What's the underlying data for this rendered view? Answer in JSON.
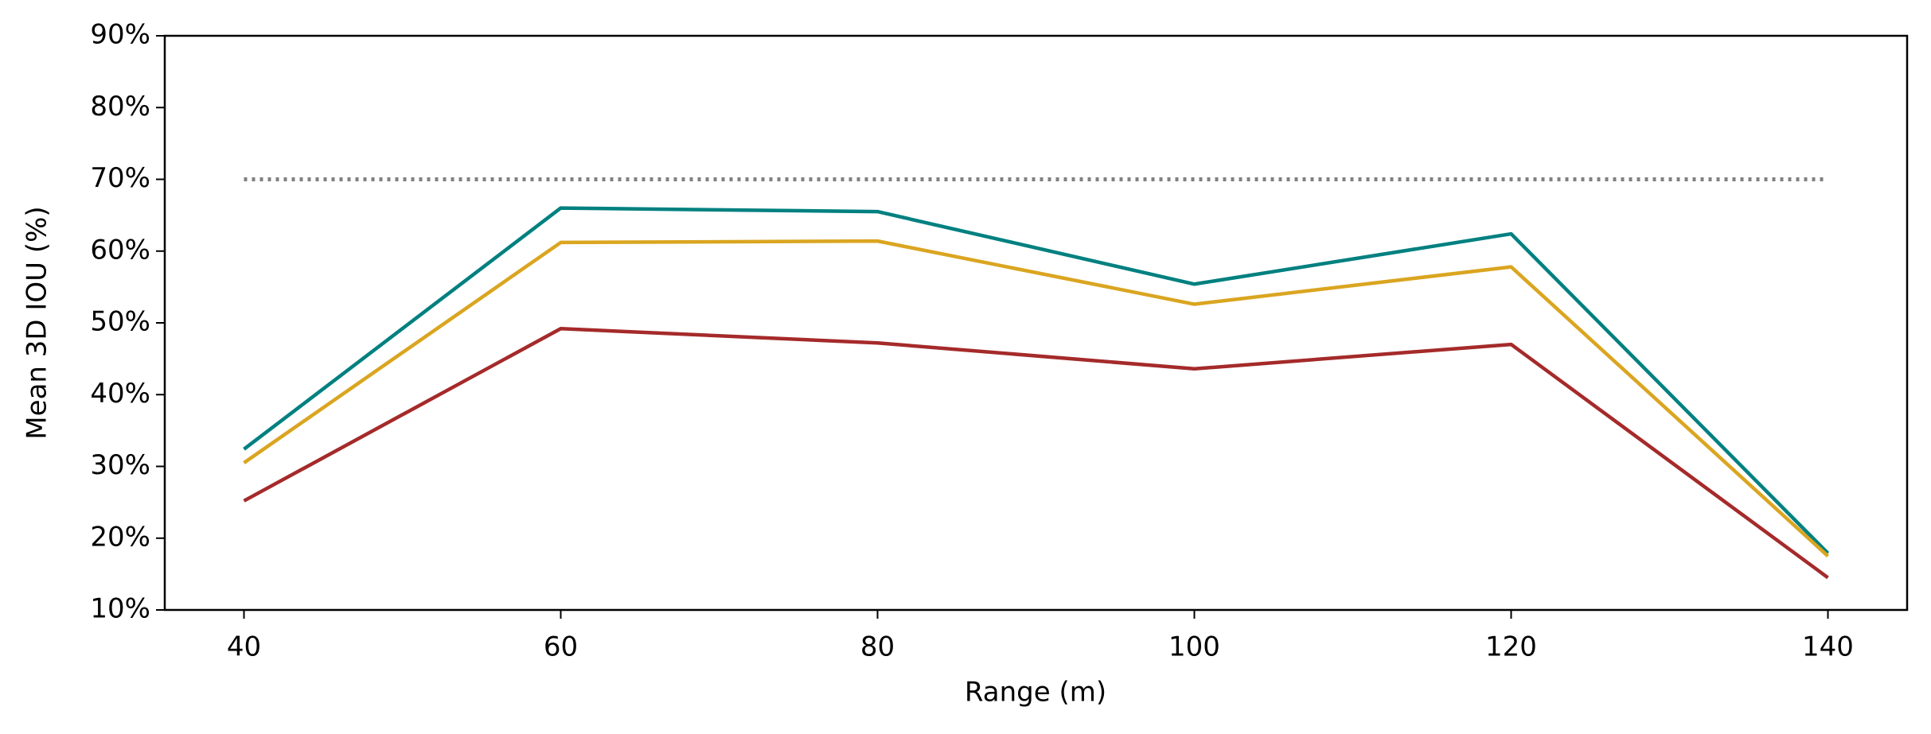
{
  "chart_data": {
    "type": "line",
    "x_label": "Range (m)",
    "y_label": "Mean 3D IOU (%)",
    "x": [
      40,
      60,
      80,
      100,
      120,
      140
    ],
    "series": [
      {
        "color": "#008080",
        "values": [
          32.4,
          66.0,
          65.5,
          55.4,
          62.4,
          17.9
        ]
      },
      {
        "color": "#DAA520",
        "values": [
          30.5,
          61.2,
          61.4,
          52.6,
          57.8,
          17.5
        ]
      },
      {
        "color": "#A52A2A",
        "values": [
          25.2,
          49.2,
          47.2,
          43.6,
          47.0,
          14.5
        ]
      },
      {
        "color": "#808080",
        "linestyle": "dotted",
        "values": [
          70,
          70,
          70,
          70,
          70,
          70
        ]
      }
    ],
    "xlim": [
      35,
      145
    ],
    "ylim": [
      10,
      90
    ],
    "xticks": [
      40,
      60,
      80,
      100,
      120,
      140
    ],
    "yticks": [
      {
        "value": 10,
        "label": "10%"
      },
      {
        "value": 20,
        "label": "20%"
      },
      {
        "value": 30,
        "label": "30%"
      },
      {
        "value": 40,
        "label": "40%"
      },
      {
        "value": 50,
        "label": "50%"
      },
      {
        "value": 60,
        "label": "60%"
      },
      {
        "value": 70,
        "label": "70%"
      },
      {
        "value": 80,
        "label": "80%"
      },
      {
        "value": 90,
        "label": "90%"
      }
    ],
    "grid": false
  }
}
